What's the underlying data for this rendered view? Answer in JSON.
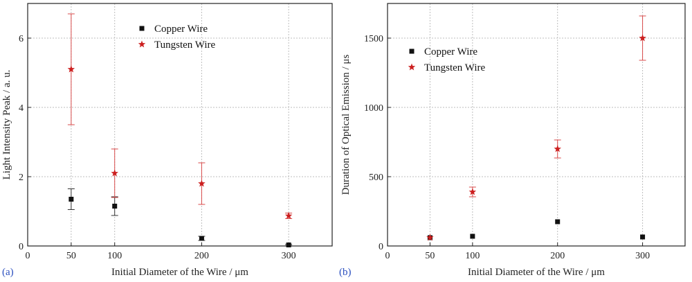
{
  "chart_data": [
    {
      "type": "scatter",
      "panel_label": "(a)",
      "xlabel": "Initial Diameter of the Wire  / μm",
      "ylabel": "Light Intensity Peak  / a. u.",
      "xlim": [
        0,
        350
      ],
      "ylim": [
        0,
        7
      ],
      "xticks": [
        0,
        50,
        100,
        200,
        300
      ],
      "yticks": [
        0,
        2,
        4,
        6
      ],
      "grid": true,
      "legend_position": "top-center",
      "series": [
        {
          "name": "Copper Wire",
          "marker": "square",
          "color": "#111111",
          "x": [
            50,
            100,
            200,
            300
          ],
          "y": [
            1.35,
            1.15,
            0.22,
            0.03
          ],
          "err": [
            0.3,
            0.27,
            0.06,
            0.02
          ]
        },
        {
          "name": "Tungsten Wire",
          "marker": "star",
          "color": "#cc1f1f",
          "x": [
            50,
            100,
            200,
            300
          ],
          "y": [
            5.1,
            2.1,
            1.8,
            0.87
          ],
          "err": [
            1.6,
            0.7,
            0.6,
            0.08
          ]
        }
      ]
    },
    {
      "type": "scatter",
      "panel_label": "(b)",
      "xlabel": "Initial Diameter of the Wire  / μm",
      "ylabel": "Duration of Optical Emission  / μs",
      "xlim": [
        0,
        350
      ],
      "ylim": [
        0,
        1750
      ],
      "xticks": [
        0,
        50,
        100,
        200,
        300
      ],
      "yticks": [
        0,
        500,
        1000,
        1500
      ],
      "grid": true,
      "legend_position": "top-left",
      "series": [
        {
          "name": "Copper Wire",
          "marker": "square",
          "color": "#111111",
          "x": [
            50,
            100,
            200,
            300
          ],
          "y": [
            60,
            70,
            175,
            65
          ],
          "err": [
            0,
            0,
            0,
            0
          ]
        },
        {
          "name": "Tungsten Wire",
          "marker": "star",
          "color": "#cc1f1f",
          "x": [
            50,
            100,
            200,
            300
          ],
          "y": [
            60,
            390,
            700,
            1500
          ],
          "err": [
            0,
            35,
            65,
            160
          ]
        }
      ]
    }
  ]
}
